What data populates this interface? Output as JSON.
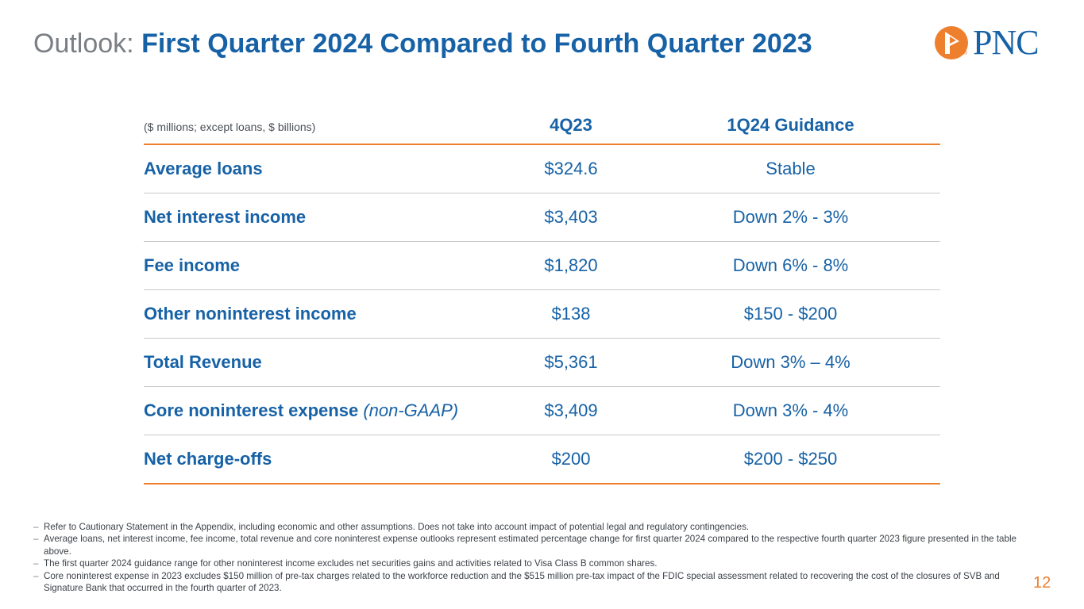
{
  "title": {
    "prefix": "Outlook:",
    "main": "First Quarter 2024 Compared to Fourth Quarter 2023"
  },
  "logo": {
    "text": "PNC",
    "registered": "®",
    "color": "#1762a6",
    "accent": "#ee7f2d"
  },
  "table": {
    "unit_label": "($ millions; except loans, $ billions)",
    "columns": [
      "4Q23",
      "1Q24 Guidance"
    ],
    "rows": [
      {
        "label": "Average loans",
        "label_suffix": "",
        "q4_2023": "$324.6",
        "guidance": "Stable"
      },
      {
        "label": "Net interest income",
        "label_suffix": "",
        "q4_2023": "$3,403",
        "guidance": "Down 2% - 3%"
      },
      {
        "label": "Fee income",
        "label_suffix": "",
        "q4_2023": "$1,820",
        "guidance": "Down 6% - 8%"
      },
      {
        "label": "Other noninterest income",
        "label_suffix": "",
        "q4_2023": "$138",
        "guidance": "$150 - $200"
      },
      {
        "label": "Total Revenue",
        "label_suffix": "",
        "q4_2023": "$5,361",
        "guidance": "Down 3% – 4%"
      },
      {
        "label": "Core noninterest expense",
        "label_suffix": "(non-GAAP)",
        "q4_2023": "$3,409",
        "guidance": "Down 3% - 4%"
      },
      {
        "label": "Net charge-offs",
        "label_suffix": "",
        "q4_2023": "$200",
        "guidance": "$200 - $250"
      }
    ]
  },
  "footnotes": [
    "Refer to Cautionary Statement in the Appendix, including economic and other assumptions. Does not take into account impact of potential legal and regulatory contingencies.",
    "Average loans, net interest income, fee income, total revenue and core noninterest expense outlooks represent estimated percentage change for first quarter 2024 compared to the respective fourth quarter 2023 figure presented in the table above.",
    "The first quarter 2024 guidance range for other noninterest income excludes net securities gains and activities related to Visa Class B common shares.",
    "Core noninterest expense in 2023 excludes $150 million of pre-tax charges related to the workforce reduction and the $515 million pre-tax impact of the FDIC special assessment related to recovering the cost of the closures of SVB and Signature Bank that occurred in the fourth quarter of 2023."
  ],
  "page_number": "12"
}
